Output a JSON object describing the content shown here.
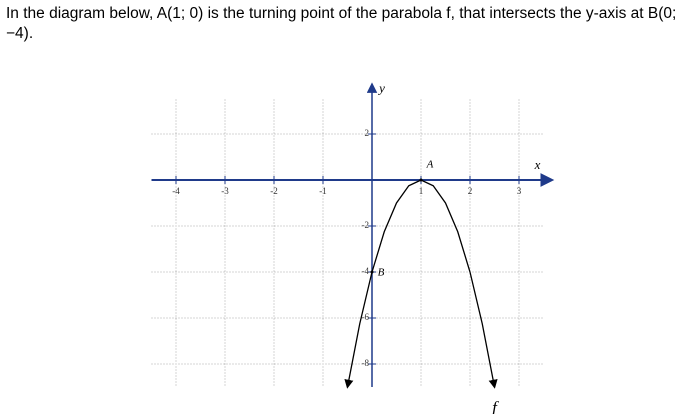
{
  "question": "In the diagram below, A(1; 0) is the turning point of the parabola f, that intersects the y-axis at B(0; −4).",
  "chart_data": {
    "type": "line",
    "x": [
      -0.5,
      -0.25,
      0,
      0.25,
      0.5,
      0.75,
      1,
      1.25,
      1.5,
      1.75,
      2,
      2.25,
      2.5
    ],
    "series": [
      {
        "name": "f",
        "color": "#000000",
        "values": [
          -9,
          -6.25,
          -4,
          -2.25,
          -1,
          -0.25,
          0,
          -0.25,
          -1,
          -2.25,
          -4,
          -6.25,
          -9
        ]
      }
    ],
    "xlim": [
      -4.5,
      3.5
    ],
    "ylim": [
      -9,
      3.5
    ],
    "xticks": [
      -4,
      -3,
      -2,
      -1,
      1,
      2,
      3
    ],
    "yticks": [
      2,
      -2,
      -4,
      -6,
      -8
    ],
    "x_label": "x",
    "y_label": "y",
    "points": [
      {
        "label": "A",
        "x": 1,
        "y": 0
      },
      {
        "label": "B",
        "x": 0,
        "y": -4
      }
    ],
    "grid": true
  }
}
